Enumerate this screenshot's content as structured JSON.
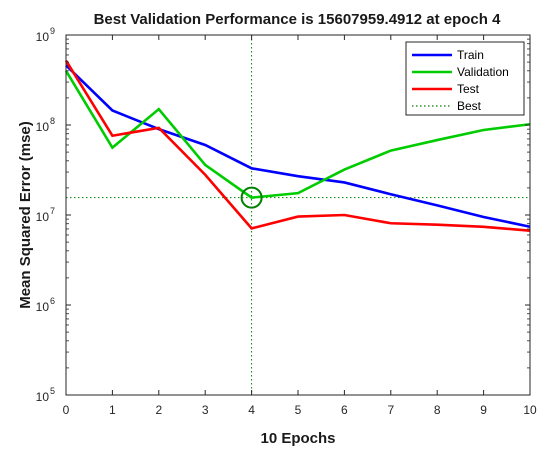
{
  "chart_data": {
    "type": "line",
    "title": "Best Validation Performance is 15607959.4912 at epoch 4",
    "xlabel": "10 Epochs",
    "ylabel": "Mean Squared Error  (mse)",
    "xlim": [
      0,
      10
    ],
    "ylim": [
      100000,
      1000000000
    ],
    "yscale": "log",
    "xticks": [
      "0",
      "1",
      "2",
      "3",
      "4",
      "5",
      "6",
      "7",
      "8",
      "9",
      "10"
    ],
    "yticks": [
      {
        "base": "10",
        "exp": "5"
      },
      {
        "base": "10",
        "exp": "6"
      },
      {
        "base": "10",
        "exp": "7"
      },
      {
        "base": "10",
        "exp": "8"
      },
      {
        "base": "10",
        "exp": "9"
      }
    ],
    "legend_position": "top-right",
    "grid": false,
    "x": [
      0,
      1,
      2,
      3,
      4,
      5,
      6,
      7,
      8,
      9,
      10
    ],
    "series": [
      {
        "name": "Train",
        "color": "#0000ff",
        "style": "solid",
        "values": [
          460000000,
          145000000,
          90000000,
          60000000,
          33000000,
          27000000,
          23000000,
          17000000,
          12800000,
          9500000,
          7400000
        ]
      },
      {
        "name": "Validation",
        "color": "#00cc00",
        "style": "solid",
        "values": [
          400000000,
          56000000,
          150000000,
          36000000,
          15607959.4912,
          17500000,
          32000000,
          52000000,
          68000000,
          88000000,
          102000000
        ]
      },
      {
        "name": "Test",
        "color": "#ff0000",
        "style": "solid",
        "values": [
          520000000,
          76000000,
          93000000,
          28000000,
          7100000,
          9600000,
          10000000,
          8100000,
          7800000,
          7400000,
          6700000
        ]
      }
    ],
    "best": {
      "name": "Best",
      "color": "#008000",
      "epoch": 4,
      "value": 15607959.4912
    }
  }
}
